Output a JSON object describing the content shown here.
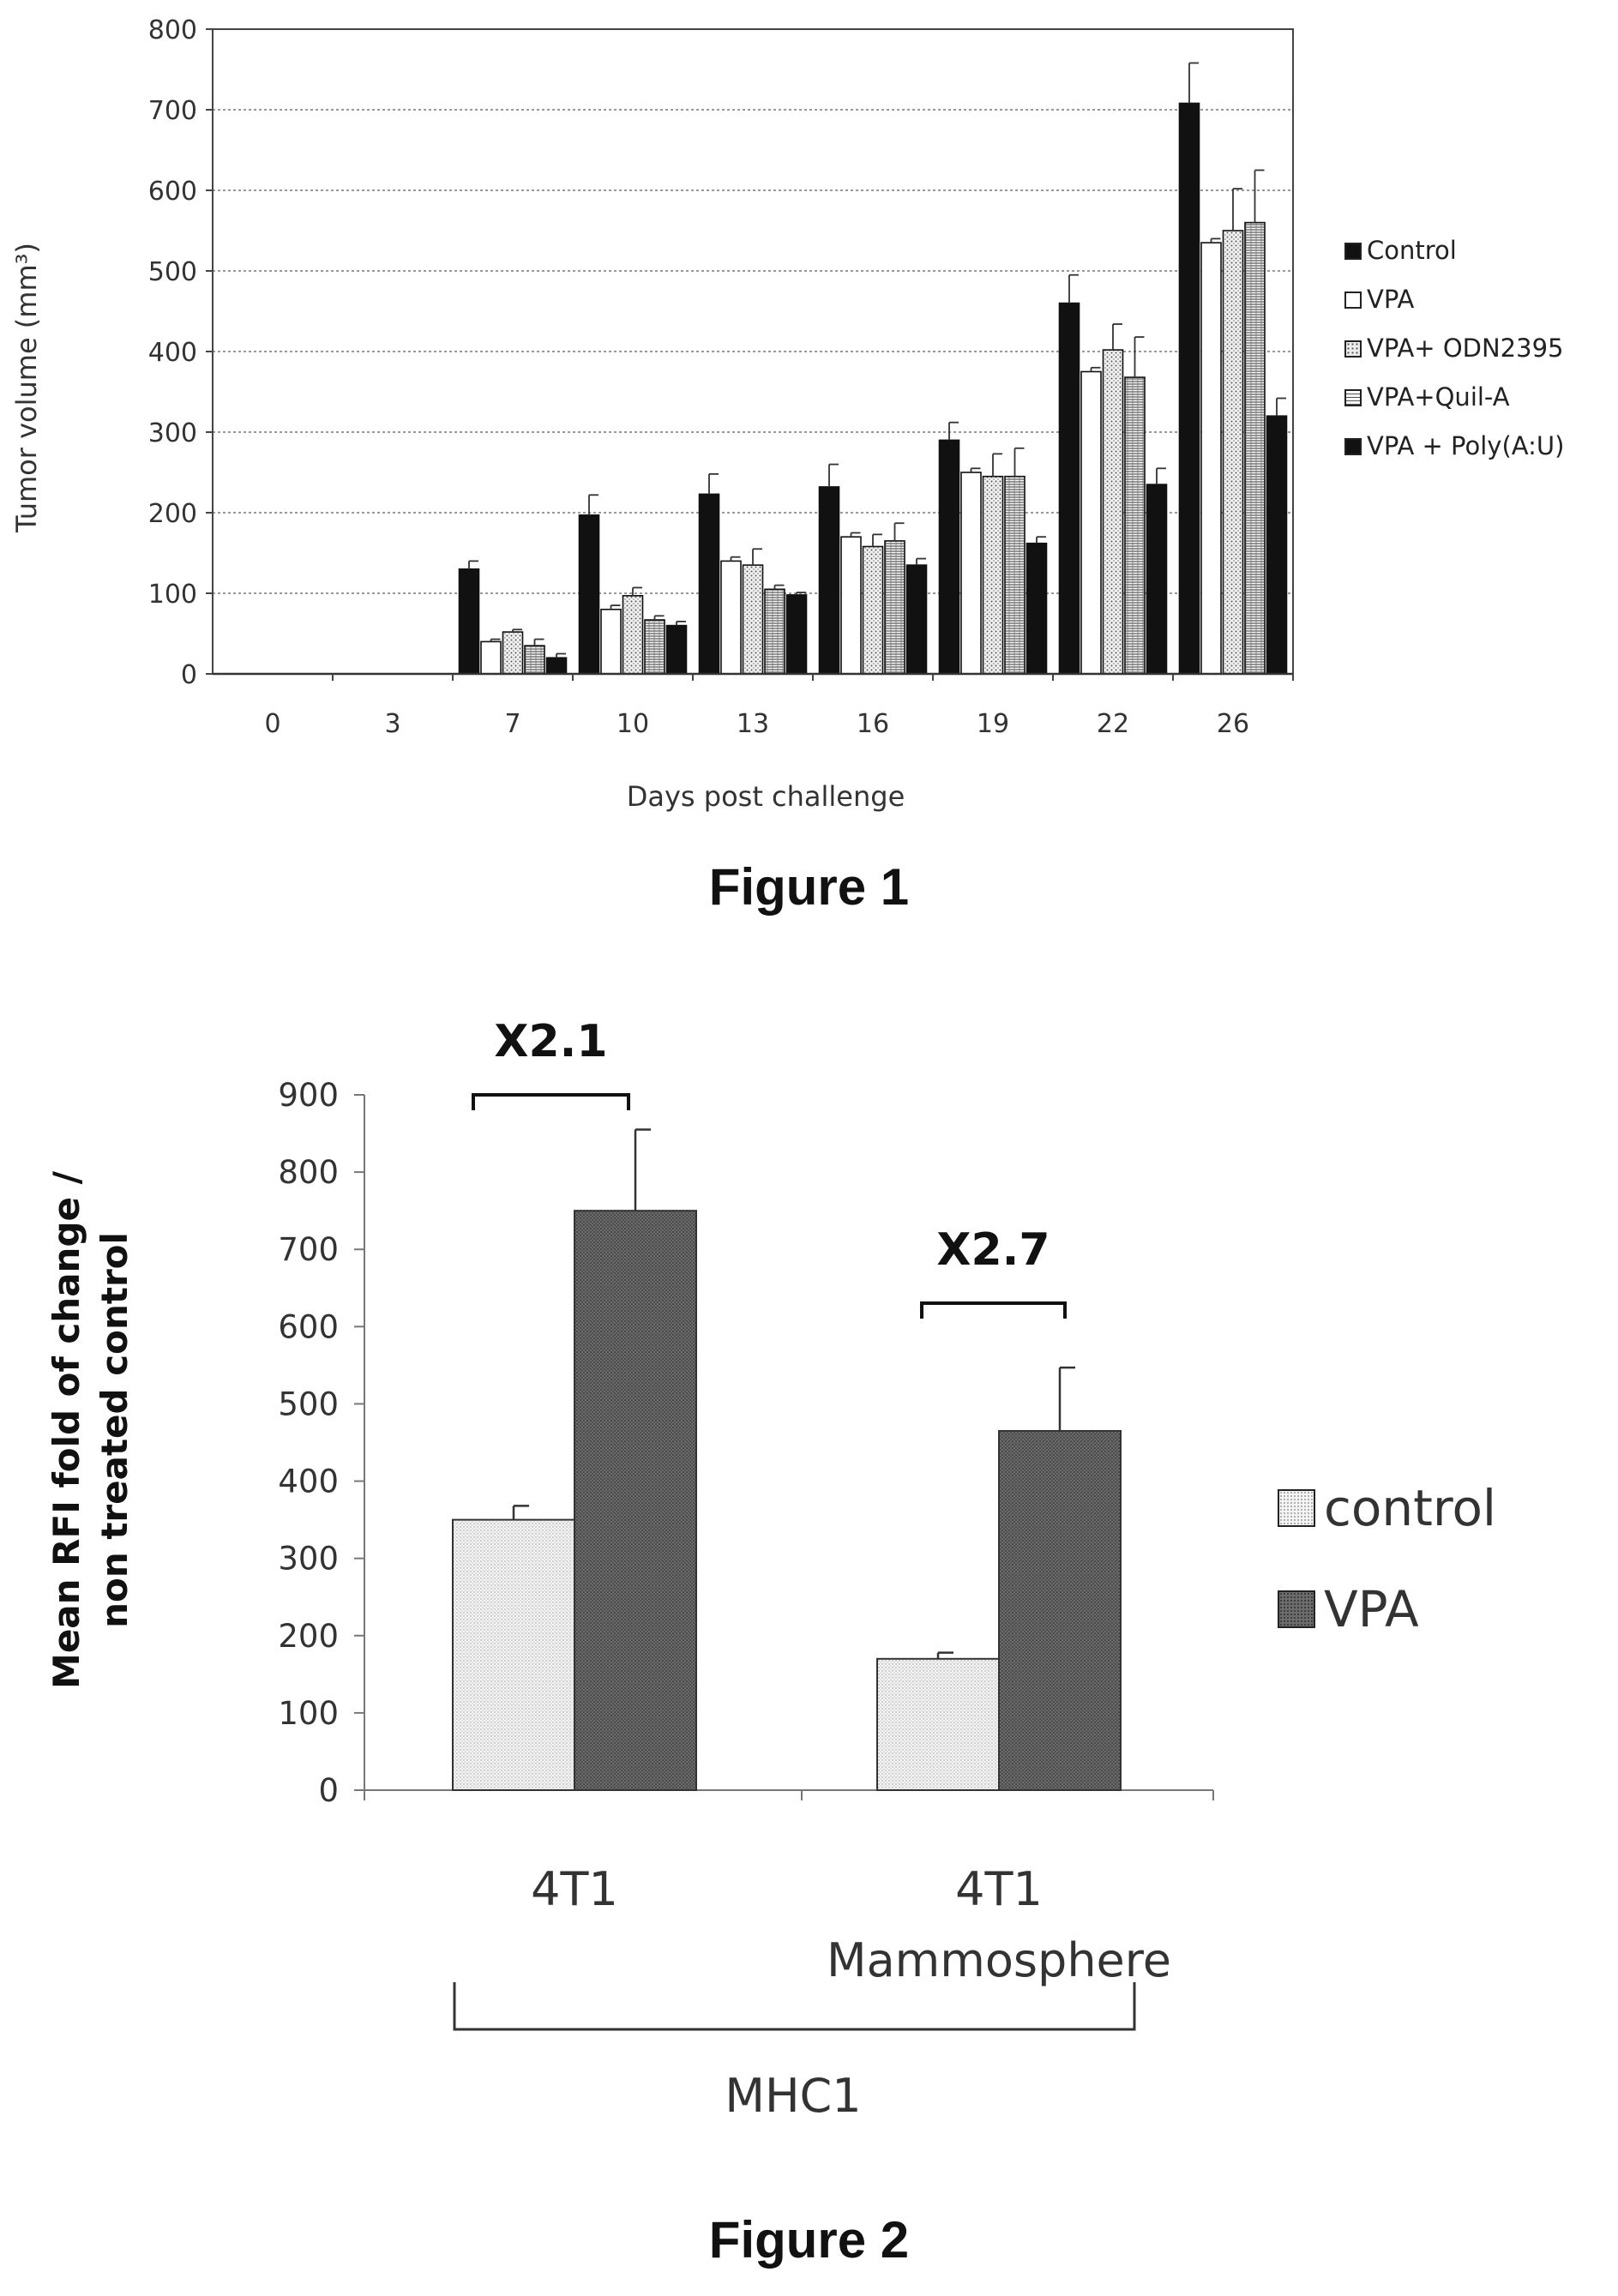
{
  "fig1": {
    "caption": "Figure 1",
    "chart_data": {
      "type": "bar",
      "xlabel": "Days post challenge",
      "ylabel": "Tumor volume (mm³)",
      "ylim": [
        0,
        800
      ],
      "yticks": [
        "0",
        "100",
        "200",
        "300",
        "400",
        "500",
        "600",
        "700",
        "800"
      ],
      "categories": [
        "0",
        "3",
        "7",
        "10",
        "13",
        "16",
        "19",
        "22",
        "26"
      ],
      "grid": true,
      "legend_position": "right",
      "series": [
        {
          "name": "Control",
          "color": "#111111",
          "fill": "solid",
          "values": [
            0,
            0,
            130,
            197,
            223,
            232,
            290,
            460,
            708
          ],
          "errors": [
            0,
            0,
            10,
            25,
            25,
            28,
            22,
            35,
            50
          ]
        },
        {
          "name": "VPA",
          "color": "#ffffff",
          "fill": "open",
          "values": [
            0,
            0,
            40,
            80,
            140,
            170,
            250,
            375,
            535
          ],
          "errors": [
            0,
            0,
            3,
            5,
            5,
            5,
            5,
            5,
            5
          ]
        },
        {
          "name": "VPA+ ODN2395",
          "color": "#d8d8d8",
          "fill": "dots",
          "values": [
            0,
            0,
            52,
            97,
            135,
            158,
            245,
            402,
            550
          ],
          "errors": [
            0,
            0,
            3,
            10,
            20,
            15,
            28,
            32,
            52
          ]
        },
        {
          "name": "VPA+Quil-A",
          "color": "#e4e4e4",
          "fill": "hatch",
          "values": [
            0,
            0,
            35,
            67,
            105,
            165,
            245,
            368,
            560
          ],
          "errors": [
            0,
            0,
            8,
            5,
            5,
            22,
            35,
            50,
            65
          ]
        },
        {
          "name": "VPA + Poly(A:U)",
          "color": "#111111",
          "fill": "solid",
          "values": [
            0,
            0,
            20,
            60,
            98,
            135,
            162,
            235,
            320
          ],
          "errors": [
            0,
            0,
            5,
            5,
            3,
            8,
            8,
            20,
            22
          ]
        }
      ]
    }
  },
  "fig2": {
    "caption": "Figure 2",
    "chart_data": {
      "type": "bar",
      "ylabel_line1": "Mean RFI fold of change /",
      "ylabel_line2": "non treated control",
      "ylim": [
        0,
        900
      ],
      "yticks": [
        "0",
        "100",
        "200",
        "300",
        "400",
        "500",
        "600",
        "700",
        "800",
        "900"
      ],
      "categories": [
        "4T1",
        "4T1 Mammosphere"
      ],
      "category_lines": [
        [
          "4T1"
        ],
        [
          "4T1",
          "Mammosphere"
        ]
      ],
      "group_label": "MHC1",
      "legend_position": "right",
      "series": [
        {
          "name": "control",
          "color": "#eeeeee",
          "fill": "dots",
          "values": [
            350,
            170
          ],
          "errors": [
            18,
            8
          ]
        },
        {
          "name": "VPA",
          "color": "#6e6e6e",
          "fill": "dark-dots",
          "values": [
            750,
            465
          ],
          "errors": [
            105,
            82
          ]
        }
      ],
      "annotations": [
        "X2.1",
        "X2.7"
      ]
    }
  }
}
